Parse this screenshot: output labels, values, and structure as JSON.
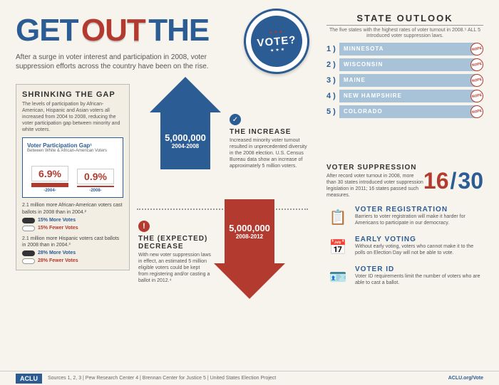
{
  "title": {
    "get": "GET",
    "out": "OUT",
    "the": "THE",
    "vote": "VOTE?"
  },
  "subtitle": "After a surge in voter interest and participation in 2008, voter suppression efforts across the country have been on the rise.",
  "shrinking": {
    "title": "SHRINKING THE GAP",
    "text": "The levels of participation by African-American, Hispanic and Asian voters all increased from 2004 to 2008, reducing the voter participation gap between minority and white voters.",
    "gap_title": "Voter Participation Gap¹",
    "gap_sub": "Between White & African-American Voters",
    "bars": [
      {
        "pct": "6.9%",
        "year": "-2004-",
        "height": 6,
        "color": "#b33a2f"
      },
      {
        "pct": "0.9%",
        "year": "-2008-",
        "height": 2,
        "color": "#b33a2f"
      }
    ],
    "stat1": "2.1 million more African-American voters cast ballots in 2008 than in 2004.²",
    "stat1_more": "15% More Votes",
    "stat1_fewer": "15% Fewer Votes",
    "stat2": "2.1 million more Hispanic voters cast ballots in 2008 than in 2004.³",
    "stat2_more": "28% More Votes",
    "stat2_fewer": "28% Fewer Votes",
    "pill_dark": "#333333",
    "pill_light": "#ffffff",
    "more_color": "#2c5c94",
    "fewer_color": "#b33a2f"
  },
  "arrows": {
    "up_num": "5,000,000",
    "up_yr": "2004-2008",
    "down_num": "5,000,000",
    "down_yr": "2008-2012"
  },
  "increase": {
    "title": "THE INCREASE",
    "text": "Increased minority voter turnout resulted in unprecedented diversity in the 2008 election. U.S. Census Bureau data show an increase of approximately 5 million voters."
  },
  "decrease": {
    "title": "THE (EXPECTED) DECREASE",
    "text": "With new voter suppression laws in effect, an estimated 5 million eligible voters could be kept from registering and/or casting a ballot in 2012.⁴"
  },
  "state_outlook": {
    "title": "STATE OUTLOOK",
    "sub": "The five states with the highest rates of voter turnout in 2008.⁵ ALL 5 introduced voter suppression laws.",
    "states": [
      {
        "num": "1 )",
        "name": "MINNESOTA"
      },
      {
        "num": "2 )",
        "name": "WISCONSIN"
      },
      {
        "num": "3 )",
        "name": "MAINE"
      },
      {
        "num": "4 )",
        "name": "NEW HAMPSHIRE"
      },
      {
        "num": "5 )",
        "name": "COLORADO"
      }
    ]
  },
  "suppression": {
    "title": "VOTER SUPPRESSION",
    "text": "After record voter turnout in 2008, more than 30 states introduced voter suppression legislation in 2011; 16 states passed such measures.",
    "n16": "16",
    "n30": "30"
  },
  "issues": [
    {
      "icon": "📋",
      "title": "VOTER REGISTRATION",
      "text": "Barriers to voter registration will make it harder for Americans to participate in our democracy."
    },
    {
      "icon": "📅",
      "title": "EARLY VOTING",
      "text": "Without early voting, voters who cannot make it to the polls on Election Day will not be able to vote."
    },
    {
      "icon": "🪪",
      "title": "VOTER ID",
      "text": "Voter ID requirements limit the number of voters who are able to cast a ballot."
    }
  ],
  "footer": {
    "aclu": "ACLU",
    "sources": "Sources    1, 2, 3 | Pew Research Center   4 | Brennan Center for Justice   5 | United States Election Project",
    "url": "ACLU.org/Vote"
  }
}
